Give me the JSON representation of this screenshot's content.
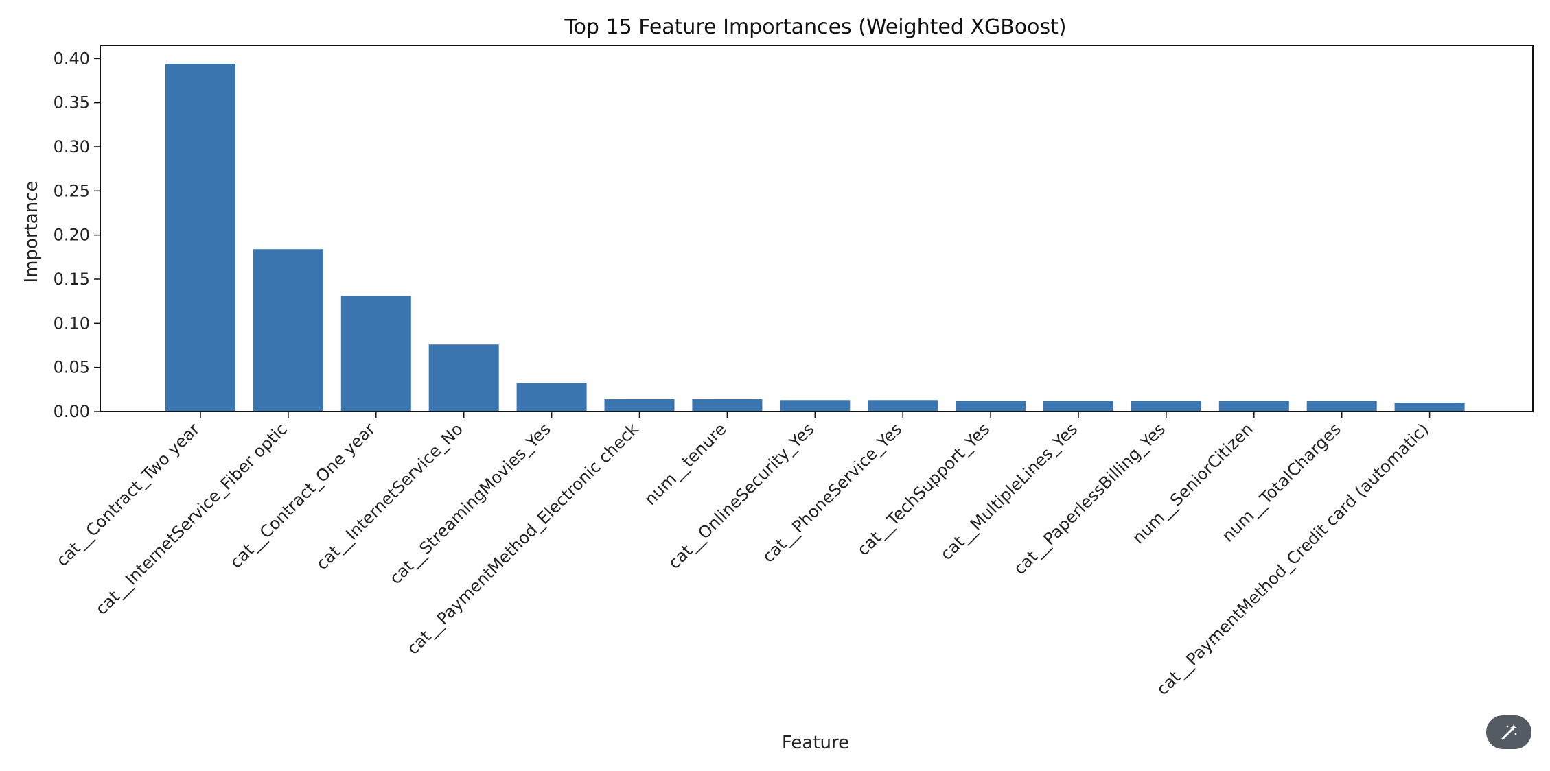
{
  "chart_data": {
    "type": "bar",
    "title": "Top 15 Feature Importances (Weighted XGBoost)",
    "xlabel": "Feature",
    "ylabel": "Importance",
    "ylim": [
      0,
      0.415
    ],
    "yticks": [
      "0.00",
      "0.05",
      "0.10",
      "0.15",
      "0.20",
      "0.25",
      "0.30",
      "0.35",
      "0.40"
    ],
    "grid": false,
    "bar_color": "#3a75b0",
    "categories": [
      "cat__Contract_Two year",
      "cat__InternetService_Fiber optic",
      "cat__Contract_One year",
      "cat__InternetService_No",
      "cat__StreamingMovies_Yes",
      "cat__PaymentMethod_Electronic check",
      "num__tenure",
      "cat__OnlineSecurity_Yes",
      "cat__PhoneService_Yes",
      "cat__TechSupport_Yes",
      "cat__MultipleLines_Yes",
      "cat__PaperlessBilling_Yes",
      "num__SeniorCitizen",
      "num__TotalCharges",
      "cat__PaymentMethod_Credit card (automatic)"
    ],
    "values": [
      0.394,
      0.184,
      0.131,
      0.076,
      0.032,
      0.014,
      0.014,
      0.013,
      0.013,
      0.012,
      0.012,
      0.012,
      0.012,
      0.012,
      0.01
    ]
  },
  "toolbar": {
    "magic_icon": "magic-wand-icon"
  }
}
